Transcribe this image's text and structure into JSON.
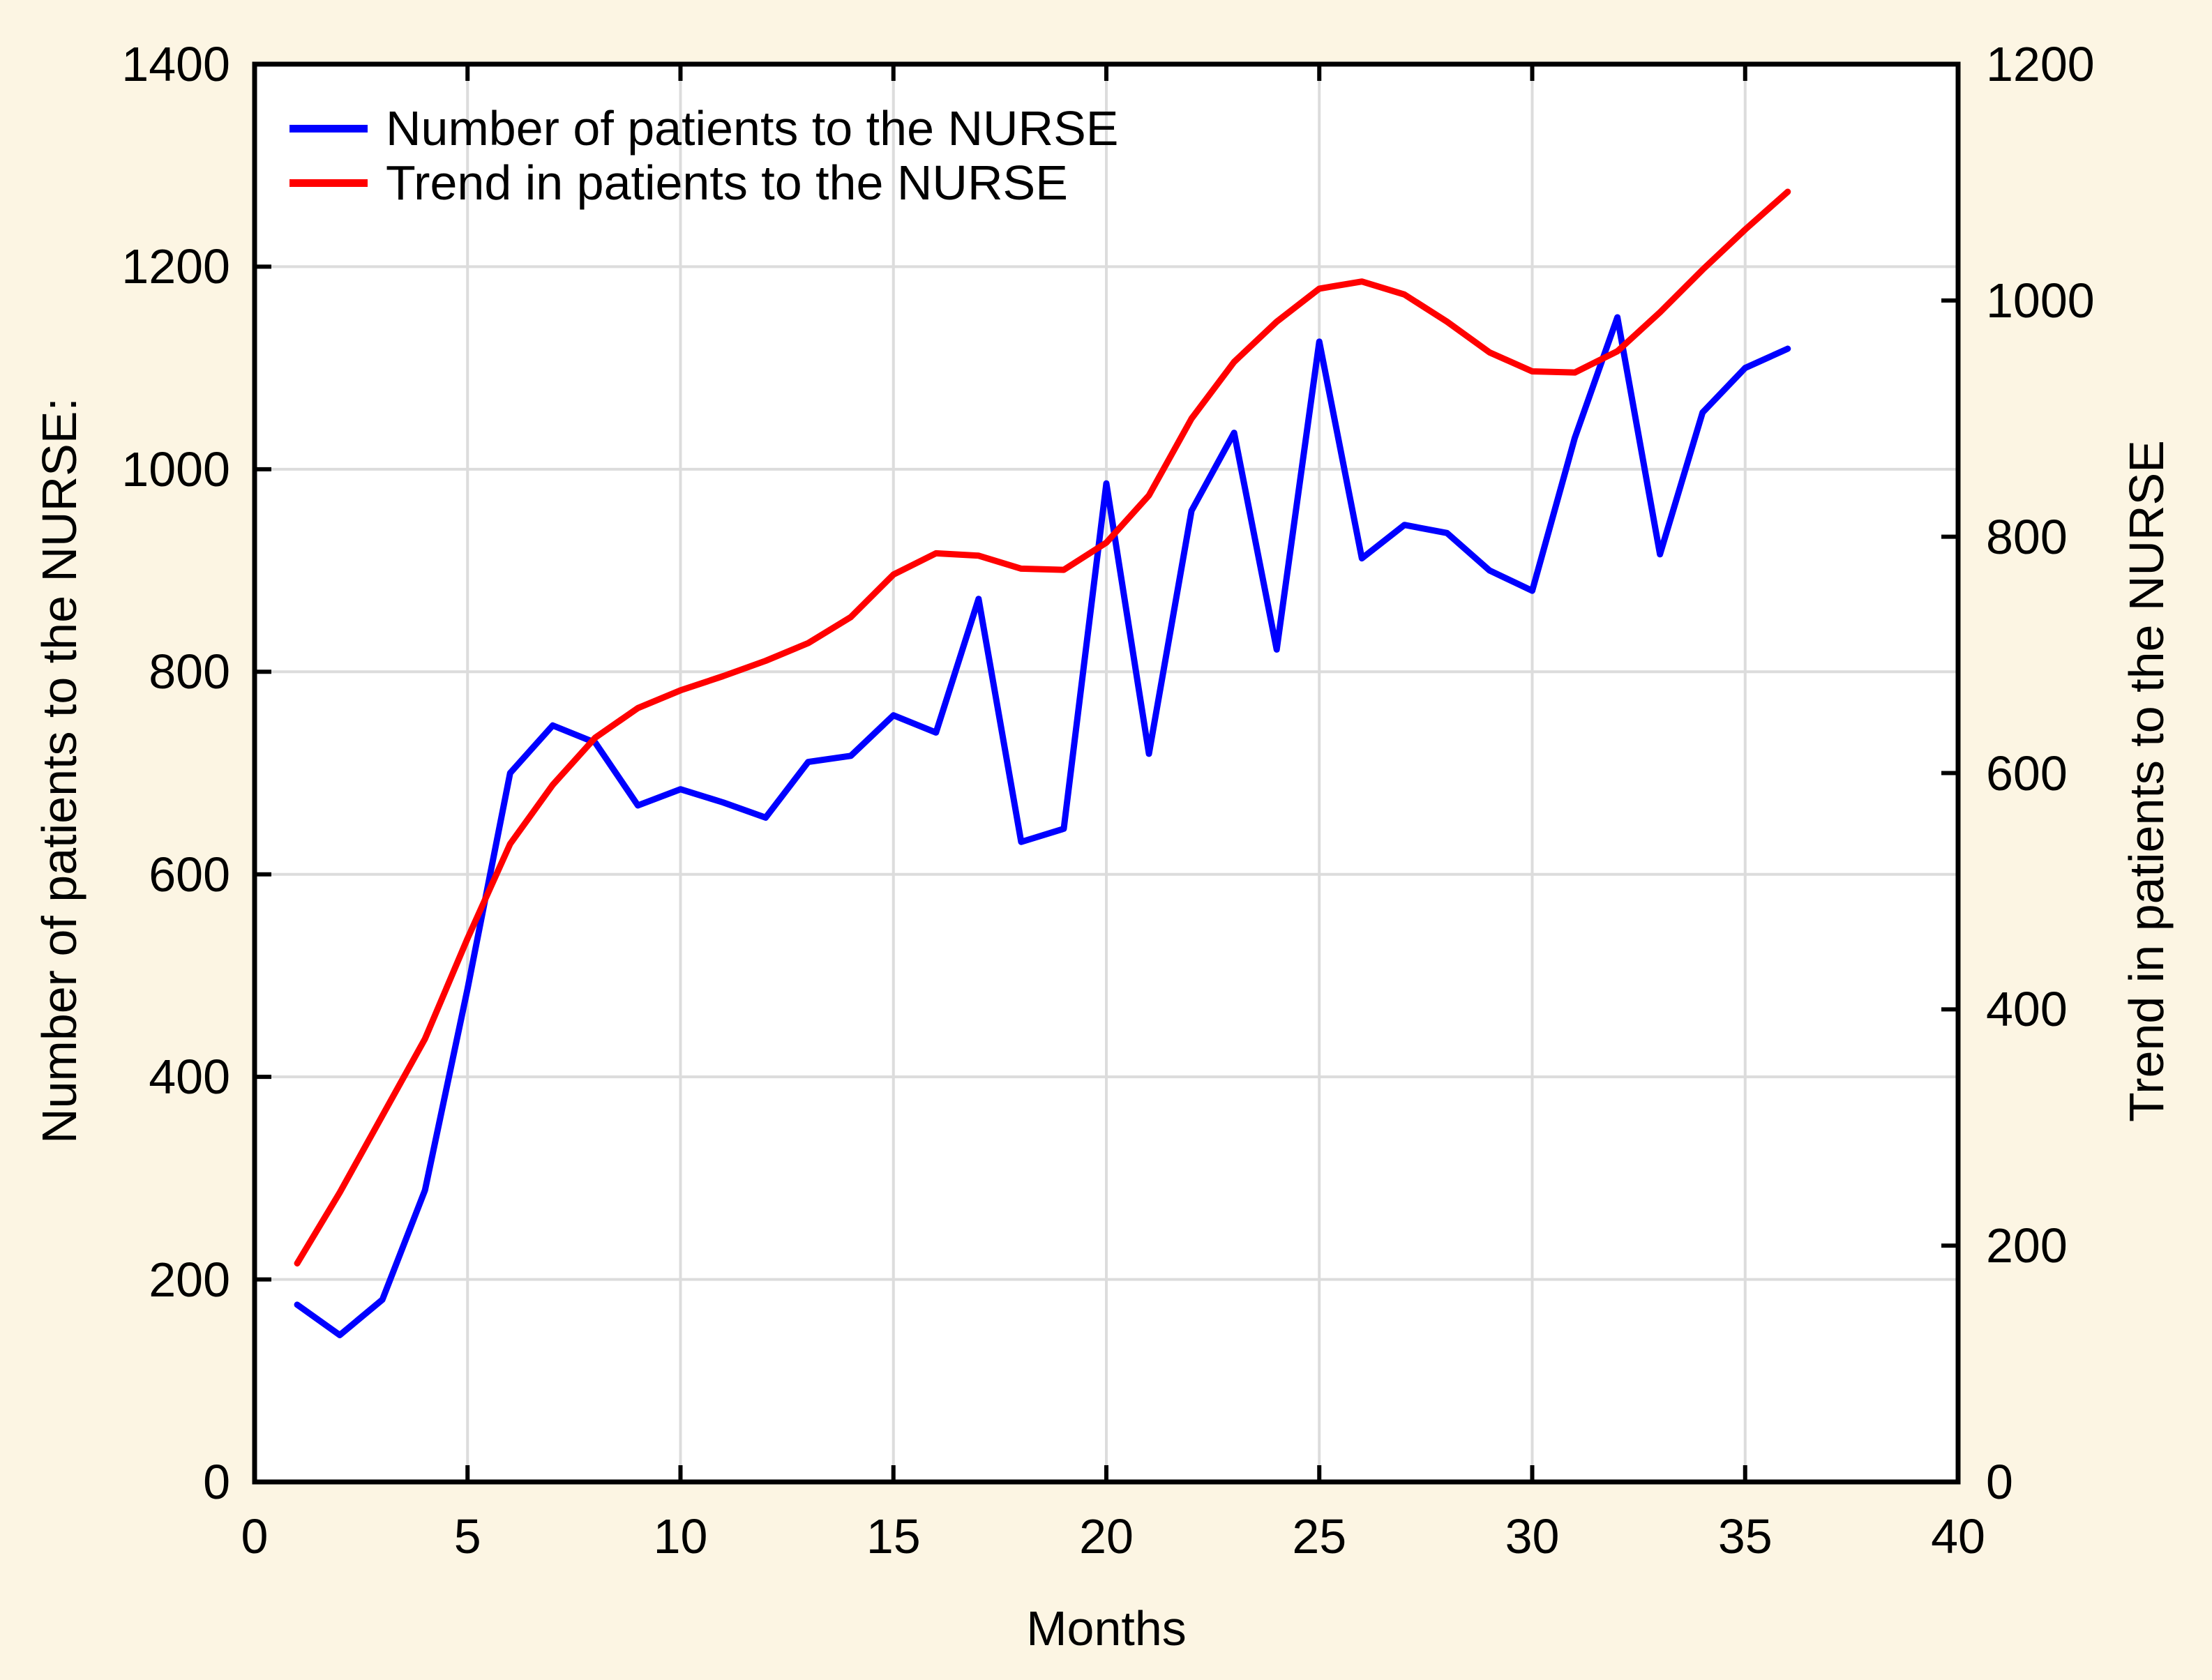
{
  "colors": {
    "page_background": "#FCF5E3",
    "plot_background": "#FFFFFF",
    "gridline": "#DCDCDC",
    "axis": "#000000",
    "series_blue": "#0000FF",
    "series_red": "#FF0000"
  },
  "chart_data": {
    "type": "line",
    "title": "",
    "xlabel": "Months",
    "ylabel_left": "Number of patients to the NURSE:",
    "ylabel_right": "Trend in patients to the NURSE",
    "x_range": [
      0,
      40
    ],
    "y_left_range": [
      0,
      1400
    ],
    "y_right_range": [
      0,
      1200
    ],
    "x_ticks": [
      0,
      5,
      10,
      15,
      20,
      25,
      30,
      35,
      40
    ],
    "y_left_ticks": [
      0,
      200,
      400,
      600,
      800,
      1000,
      1200,
      1400
    ],
    "y_right_ticks": [
      0,
      200,
      400,
      600,
      800,
      1000,
      1200
    ],
    "grid": "vertical at x ticks and horizontal at left-y ticks, light gray; full black frame with inward tick marks",
    "legend_position": "top-left inside plot, no frame",
    "x": [
      1,
      2,
      3,
      4,
      5,
      6,
      7,
      8,
      9,
      10,
      11,
      12,
      13,
      14,
      15,
      16,
      17,
      18,
      19,
      20,
      21,
      22,
      23,
      24,
      25,
      26,
      27,
      28,
      29,
      30,
      31,
      32,
      33,
      34,
      35,
      36
    ],
    "series": [
      {
        "name": "Number of patients to the NURSE",
        "axis": "left",
        "color": "#0000FF",
        "values": [
          175,
          145,
          180,
          288,
          487,
          700,
          747,
          730,
          668,
          684,
          671,
          656,
          711,
          717,
          757,
          740,
          872,
          632,
          645,
          986,
          719,
          959,
          1036,
          822,
          1126,
          912,
          945,
          937,
          900,
          880,
          1031,
          1150,
          916,
          1056,
          1100,
          1119
        ]
      },
      {
        "name": "Trend in patients to the NURSE",
        "axis": "right",
        "color": "#FF0000",
        "values": [
          185,
          245,
          310,
          375,
          460,
          540,
          590,
          630,
          655,
          670,
          682,
          695,
          710,
          732,
          768,
          786,
          784,
          773,
          772,
          795,
          835,
          900,
          948,
          982,
          1010,
          1016,
          1005,
          982,
          956,
          940,
          939,
          957,
          990,
          1026,
          1060,
          1092
        ]
      }
    ]
  }
}
